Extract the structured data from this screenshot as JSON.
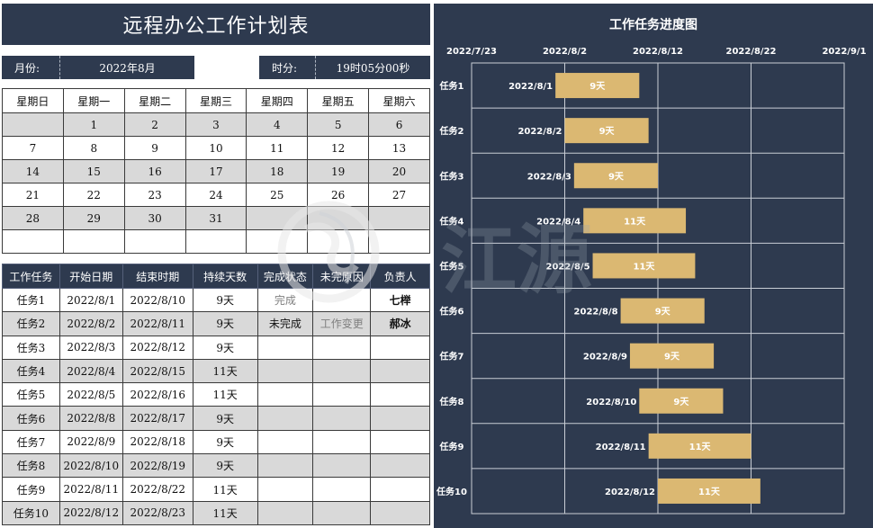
{
  "title": "远程办公工作计划表",
  "month_label": "月份:",
  "month_value": "2022年8月",
  "time_label": "时分:",
  "time_value": "19时05分00秒",
  "calendar": {
    "weekdays": [
      "星期日",
      "星期一",
      "星期二",
      "星期三",
      "星期四",
      "星期五",
      "星期六"
    ],
    "today": "16",
    "weeks": [
      [
        "",
        "1",
        "2",
        "3",
        "4",
        "5",
        "6"
      ],
      [
        "7",
        "8",
        "9",
        "10",
        "11",
        "12",
        "13"
      ],
      [
        "14",
        "15",
        "16",
        "17",
        "18",
        "19",
        "20"
      ],
      [
        "21",
        "22",
        "23",
        "24",
        "25",
        "26",
        "27"
      ],
      [
        "28",
        "29",
        "30",
        "31",
        "",
        "",
        ""
      ],
      [
        "",
        "",
        "",
        "",
        "",
        "",
        ""
      ]
    ]
  },
  "tasks": {
    "headers": [
      "工作任务",
      "开始日期",
      "结束时期",
      "持续天数",
      "完成状态",
      "未完原因",
      "负责人"
    ],
    "rows": [
      [
        "任务1",
        "2022/8/1",
        "2022/8/10",
        "9天",
        "完成",
        "",
        "七榉"
      ],
      [
        "任务2",
        "2022/8/2",
        "2022/8/11",
        "9天",
        "未完成",
        "工作变更",
        "郝冰"
      ],
      [
        "任务3",
        "2022/8/3",
        "2022/8/12",
        "9天",
        "",
        "",
        ""
      ],
      [
        "任务4",
        "2022/8/4",
        "2022/8/15",
        "11天",
        "",
        "",
        ""
      ],
      [
        "任务5",
        "2022/8/5",
        "2022/8/16",
        "11天",
        "",
        "",
        ""
      ],
      [
        "任务6",
        "2022/8/8",
        "2022/8/17",
        "9天",
        "",
        "",
        ""
      ],
      [
        "任务7",
        "2022/8/9",
        "2022/8/18",
        "9天",
        "",
        "",
        ""
      ],
      [
        "任务8",
        "2022/8/10",
        "2022/8/19",
        "9天",
        "",
        "",
        ""
      ],
      [
        "任务9",
        "2022/8/11",
        "2022/8/22",
        "11天",
        "",
        "",
        ""
      ],
      [
        "任务10",
        "2022/8/12",
        "2022/8/23",
        "11天",
        "",
        "",
        ""
      ]
    ]
  },
  "watermark": "江源",
  "colors": {
    "navy": "#2e3a4f",
    "bar": "#dbb872",
    "highlight": "#ffc000",
    "gray": "#d9d9d9"
  },
  "chart_data": {
    "type": "bar",
    "orientation": "horizontal-stacked-gantt",
    "title": "工作任务进度图",
    "x_ticks": [
      "2022/7/23",
      "2022/8/2",
      "2022/8/12",
      "2022/8/22",
      "2022/9/1"
    ],
    "x_range": [
      "2022/7/23",
      "2022/9/1"
    ],
    "categories": [
      "任务1",
      "任务2",
      "任务3",
      "任务4",
      "任务5",
      "任务6",
      "任务7",
      "任务8",
      "任务9",
      "任务10"
    ],
    "series": [
      {
        "name": "开始日期",
        "hidden": true,
        "values": [
          "2022/8/1",
          "2022/8/2",
          "2022/8/3",
          "2022/8/4",
          "2022/8/5",
          "2022/8/8",
          "2022/8/9",
          "2022/8/10",
          "2022/8/11",
          "2022/8/12"
        ]
      },
      {
        "name": "持续天数",
        "color": "#dbb872",
        "values": [
          9,
          9,
          9,
          11,
          11,
          9,
          9,
          9,
          11,
          11
        ],
        "labels": [
          "9天",
          "9天",
          "9天",
          "11天",
          "11天",
          "9天",
          "9天",
          "9天",
          "11天",
          "11天"
        ]
      }
    ],
    "grid": true,
    "legend": "none"
  }
}
